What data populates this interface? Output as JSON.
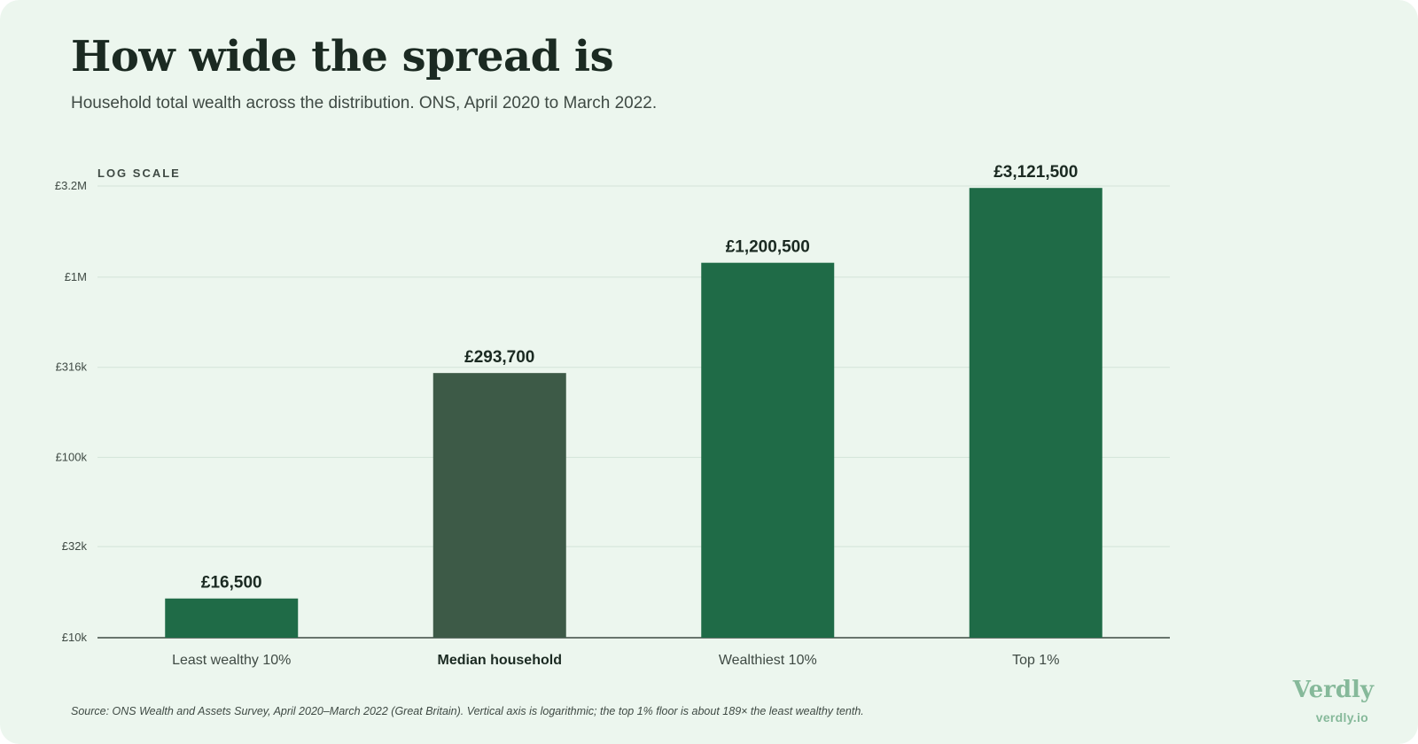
{
  "title": "How wide the spread is",
  "subtitle": "Household total wealth across the distribution. ONS, April 2020 to March 2022.",
  "source": "Source: ONS Wealth and Assets Survey, April 2020–March 2022 (Great Britain). Vertical axis is logarithmic; the top 1% floor is about 189× the least wealthy tenth.",
  "brand": {
    "name": "Verdly",
    "url": "verdly.io"
  },
  "colors": {
    "bar": "#1f6b47",
    "highlight": "#3d5a47",
    "background": "#ecf6ee",
    "grid": "#d3e3d8",
    "brand": "#86b99a"
  },
  "chart_data": {
    "type": "bar",
    "scale_label": "LOG SCALE",
    "y_scale": "log",
    "ylim": [
      10000,
      3200000
    ],
    "yticks": [
      {
        "value": 10000,
        "label": "£10k"
      },
      {
        "value": 32000,
        "label": "£32k"
      },
      {
        "value": 100000,
        "label": "£100k"
      },
      {
        "value": 316000,
        "label": "£316k"
      },
      {
        "value": 1000000,
        "label": "£1M"
      },
      {
        "value": 3200000,
        "label": "£3.2M"
      }
    ],
    "categories": [
      "Least wealthy 10%",
      "Median household",
      "Wealthiest 10%",
      "Top 1%"
    ],
    "values": [
      16500,
      293700,
      1200500,
      3121500
    ],
    "value_labels": [
      "£16,500",
      "£293,700",
      "£1,200,500",
      "£3,121,500"
    ],
    "highlight_category": "Median household",
    "grid": true
  }
}
